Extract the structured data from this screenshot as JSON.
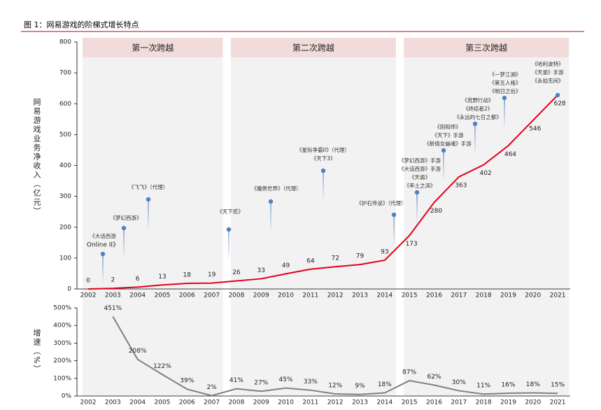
{
  "title": "图 1：网易游戏的阶梯式增长特点",
  "chart_data": [
    {
      "type": "line",
      "ylabel": "网易游戏业务净收入（亿元）",
      "phases": [
        "第一次跨越",
        "第二次跨越",
        "第三次跨越"
      ],
      "categories": [
        "2002",
        "2003",
        "2004",
        "2005",
        "2006",
        "2007",
        "2008",
        "2009",
        "2010",
        "2011",
        "2012",
        "2013",
        "2014",
        "2015",
        "2016",
        "2017",
        "2018",
        "2019",
        "2020",
        "2021"
      ],
      "values": [
        0,
        2,
        6,
        13,
        18,
        19,
        26,
        33,
        49,
        64,
        72,
        79,
        93,
        173,
        280,
        363,
        402,
        464,
        546,
        628
      ],
      "color": "#e3001b",
      "ylim": [
        0,
        800
      ],
      "yticks": [
        0,
        100,
        200,
        300,
        400,
        500,
        600,
        700,
        800
      ],
      "annotations": [
        [
          "《大话西游",
          "Online II》"
        ],
        [
          "《梦幻西游》"
        ],
        [
          "《飞飞》（代理）"
        ],
        [
          "《天下贰》"
        ],
        [
          "《魔兽世界》（代理）"
        ],
        [
          "《星际争霸II》（代理）",
          "《天下3》"
        ],
        [
          "《炉石传说》（代理）"
        ],
        [
          "《梦幻西游》手游",
          "《大话西游》手游",
          "《天谕》",
          "《率土之滨》"
        ],
        [
          "《阴阳师》",
          "《天下》手游",
          "《新倩女幽魂》手游"
        ],
        [
          "《荒野行动》",
          "《终结者2》",
          "《永远的七日之都》"
        ],
        [
          "《一梦江湖》",
          "《第五人格》",
          "《明日之后》"
        ],
        [
          "《哈利波特》",
          "《天谕》手游",
          "《永劫无间》"
        ]
      ]
    },
    {
      "type": "line",
      "ylabel": "增速（%）",
      "categories": [
        "2002",
        "2003",
        "2004",
        "2005",
        "2006",
        "2007",
        "2008",
        "2009",
        "2010",
        "2011",
        "2012",
        "2013",
        "2014",
        "2015",
        "2016",
        "2017",
        "2018",
        "2019",
        "2020",
        "2021"
      ],
      "values": [
        null,
        451,
        208,
        122,
        39,
        2,
        41,
        27,
        45,
        33,
        12,
        9,
        18,
        87,
        62,
        30,
        11,
        16,
        18,
        15
      ],
      "value_labels": [
        null,
        "451%",
        "208%",
        "122%",
        "39%",
        "2%",
        "41%",
        "27%",
        "45%",
        "33%",
        "12%",
        "9%",
        "18%",
        "87%",
        "62%",
        "30%",
        "11%",
        "16%",
        "18%",
        "15%"
      ],
      "color": "#808080",
      "ylim": [
        0,
        500
      ],
      "yticks": [
        {
          "value": 0,
          "label": "0%"
        },
        {
          "value": 100,
          "label": "100%"
        },
        {
          "value": 200,
          "label": "200%"
        },
        {
          "value": 300,
          "label": "300%"
        },
        {
          "value": 400,
          "label": "400%"
        },
        {
          "value": 500,
          "label": "500%"
        }
      ]
    }
  ]
}
